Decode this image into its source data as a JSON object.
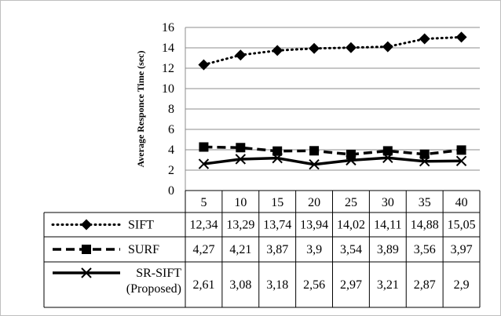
{
  "chart_data": {
    "type": "line",
    "ylabel": "Average Responce Time (sec)",
    "xlabel": "",
    "ylim": [
      0,
      16
    ],
    "y_ticks": [
      "0",
      "2",
      "4",
      "6",
      "8",
      "10",
      "12",
      "14",
      "16"
    ],
    "grid": true,
    "legend": "data-table",
    "categories": [
      "5",
      "10",
      "15",
      "20",
      "25",
      "30",
      "35",
      "40"
    ],
    "series": [
      {
        "name": "SIFT",
        "name_lines": [
          "SIFT"
        ],
        "style": "dotted",
        "marker": "diamond",
        "values": [
          12.34,
          13.29,
          13.74,
          13.94,
          14.02,
          14.11,
          14.88,
          15.05
        ],
        "labels": [
          "12,34",
          "13,29",
          "13,74",
          "13,94",
          "14,02",
          "14,11",
          "14,88",
          "15,05"
        ]
      },
      {
        "name": "SURF",
        "name_lines": [
          "SURF"
        ],
        "style": "dashed",
        "marker": "square",
        "values": [
          4.27,
          4.21,
          3.87,
          3.9,
          3.54,
          3.89,
          3.56,
          3.97
        ],
        "labels": [
          "4,27",
          "4,21",
          "3,87",
          "3,9",
          "3,54",
          "3,89",
          "3,56",
          "3,97"
        ]
      },
      {
        "name": "SR-SIFT (Proposed)",
        "name_lines": [
          "SR-SIFT",
          "(Proposed)"
        ],
        "style": "solid",
        "marker": "x",
        "values": [
          2.61,
          3.08,
          3.18,
          2.56,
          2.97,
          3.21,
          2.87,
          2.9
        ],
        "labels": [
          "2,61",
          "3,08",
          "3,18",
          "2,56",
          "2,97",
          "3,21",
          "2,87",
          "2,9"
        ]
      }
    ],
    "colors": {
      "line": "#000000",
      "grid": "#8c8c8c",
      "table_border": "#000000"
    }
  }
}
